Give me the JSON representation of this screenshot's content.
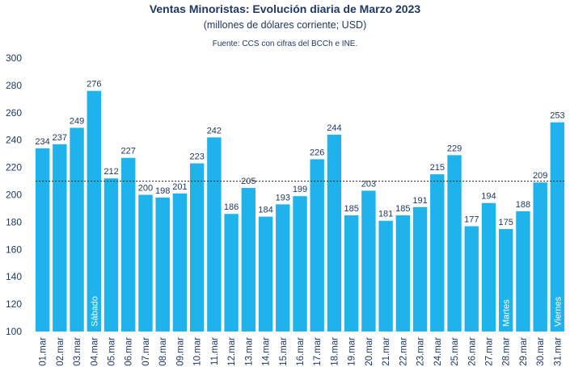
{
  "chart_data": {
    "type": "bar",
    "title": "Ventas Minoristas: Evolución diaria de Marzo 2023",
    "subtitle": "(millones de dólares corriente; USD)",
    "source": "Fuente: CCS con cifras del BCCh e INE.",
    "categories": [
      "01.mar",
      "02.mar",
      "03.mar",
      "04.mar",
      "05.mar",
      "06.mar",
      "07.mar",
      "08.mar",
      "09.mar",
      "10.mar",
      "11.mar",
      "12.mar",
      "13.mar",
      "14.mar",
      "15.mar",
      "16.mar",
      "17.mar",
      "18.mar",
      "19.mar",
      "20.mar",
      "21.mar",
      "22.mar",
      "23.mar",
      "24.mar",
      "25.mar",
      "26.mar",
      "27.mar",
      "28.mar",
      "29.mar",
      "30.mar",
      "31.mar"
    ],
    "values": [
      234,
      237,
      249,
      276,
      212,
      227,
      200,
      198,
      201,
      223,
      242,
      186,
      205,
      184,
      193,
      199,
      226,
      244,
      185,
      203,
      181,
      185,
      191,
      215,
      229,
      177,
      194,
      175,
      188,
      209,
      253
    ],
    "ylim": [
      100,
      300
    ],
    "yticks": [
      100,
      120,
      140,
      160,
      180,
      200,
      220,
      240,
      260,
      280,
      300
    ],
    "reference_line": {
      "value": 210,
      "style": "dotted"
    },
    "bar_annotations": [
      {
        "category": "04.mar",
        "text": "Sábado"
      },
      {
        "category": "28.mar",
        "text": "Martes"
      },
      {
        "category": "31.mar",
        "text": "Viernes"
      }
    ],
    "bar_color": "#1fb3ec",
    "grid": false
  }
}
